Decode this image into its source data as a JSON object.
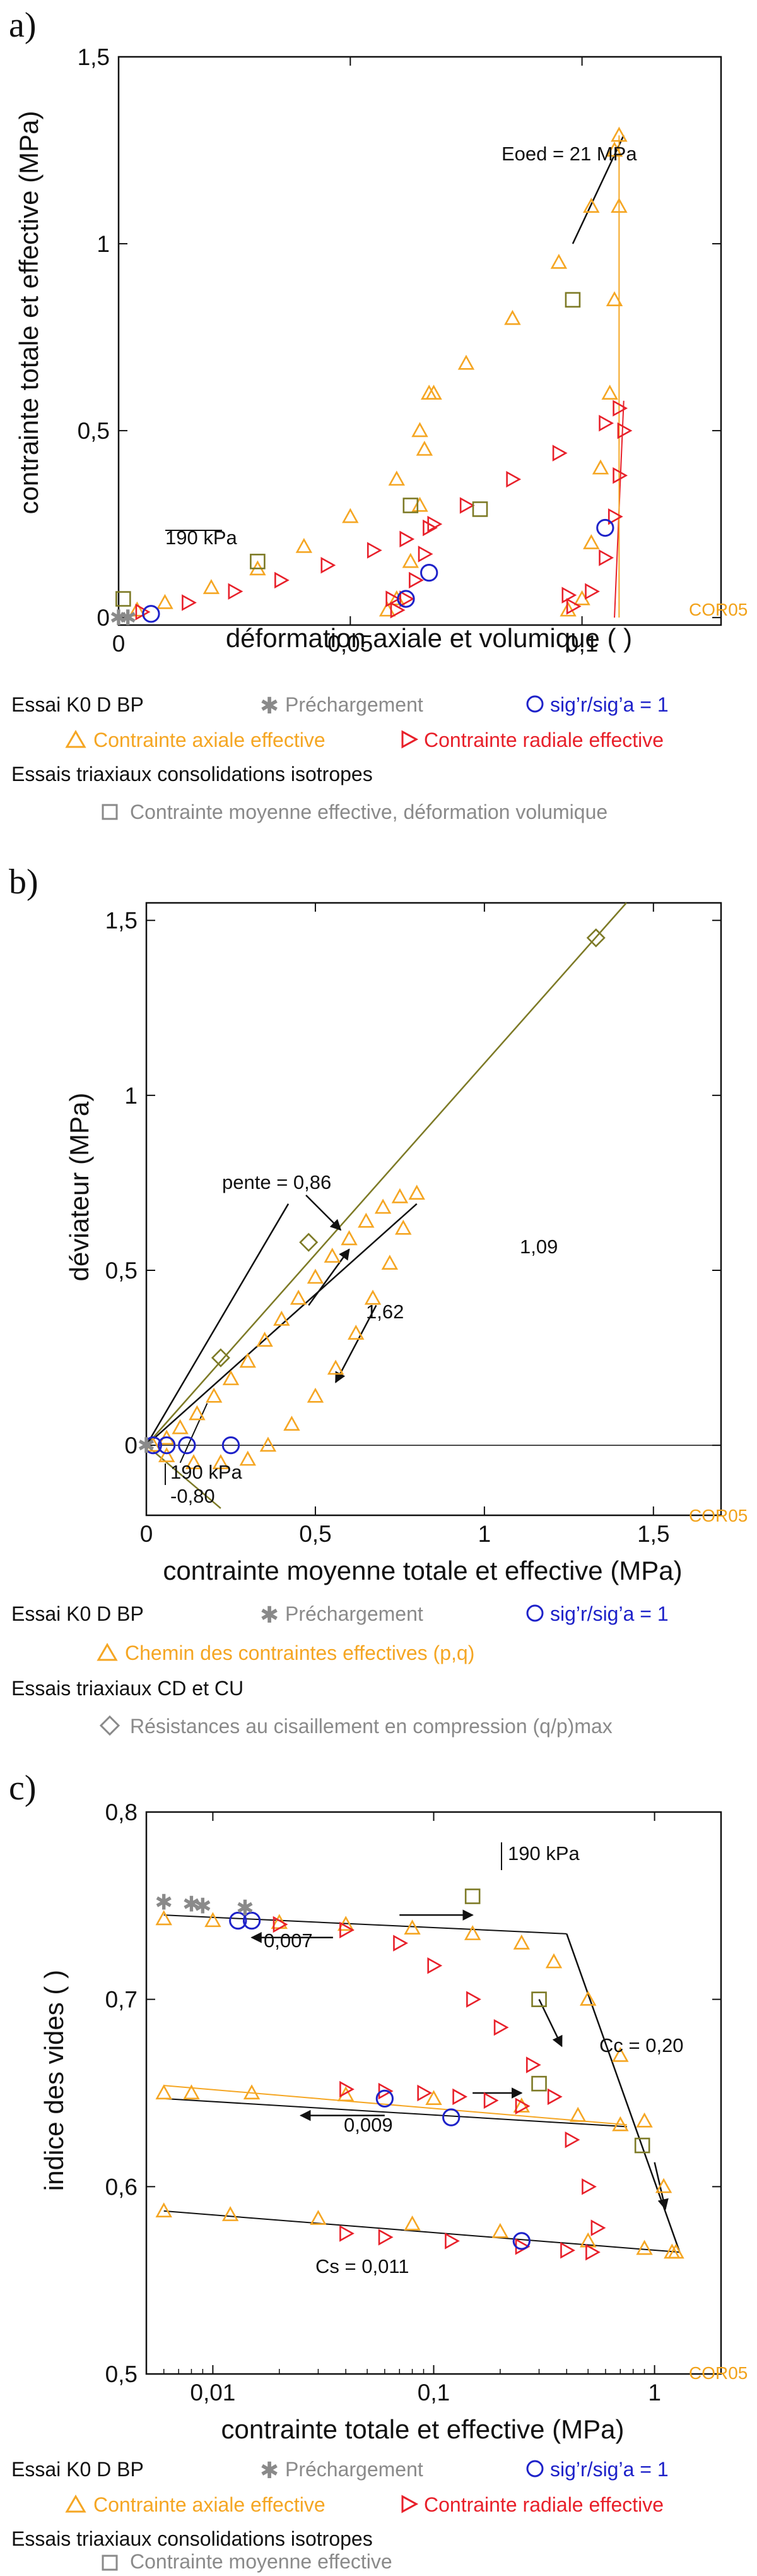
{
  "colors": {
    "orange": "#f5a623",
    "red": "#e8202a",
    "blue": "#1e22c9",
    "gray": "#8a8a8a",
    "olive": "#7d7a26",
    "black": "#111111"
  },
  "chart_data": [
    {
      "type": "scatter",
      "panel": "a)",
      "ylabel": "contrainte totale et effective (MPa)",
      "xlabel": "déformation axiale et volumique ( )",
      "xlim": [
        0,
        0.13
      ],
      "ylim": [
        -0.02,
        1.5
      ],
      "xticks": [
        0,
        0.05,
        0.1
      ],
      "xtick_labels": [
        "0",
        "0,05",
        "0,1"
      ],
      "yticks": [
        0,
        0.5,
        1,
        1.5
      ],
      "ytick_labels": [
        "0",
        "0,5",
        "1",
        "1,5"
      ],
      "sample": "COR05",
      "annotations": [
        "Eoed = 21 MPa",
        "190 kPa"
      ],
      "series": [
        {
          "name": "Contrainte axiale effective",
          "color": "#f5a623",
          "marker": "triangle",
          "points": [
            [
              0.004,
              0.02
            ],
            [
              0.01,
              0.04
            ],
            [
              0.02,
              0.08
            ],
            [
              0.03,
              0.13
            ],
            [
              0.04,
              0.19
            ],
            [
              0.05,
              0.27
            ],
            [
              0.06,
              0.37
            ],
            [
              0.065,
              0.5
            ],
            [
              0.068,
              0.6
            ],
            [
              0.075,
              0.68
            ],
            [
              0.085,
              0.8
            ],
            [
              0.095,
              0.95
            ],
            [
              0.102,
              1.1
            ],
            [
              0.107,
              1.25
            ],
            [
              0.108,
              1.29
            ],
            [
              0.108,
              1.1
            ],
            [
              0.107,
              0.85
            ],
            [
              0.106,
              0.6
            ],
            [
              0.104,
              0.4
            ],
            [
              0.102,
              0.2
            ],
            [
              0.1,
              0.05
            ],
            [
              0.097,
              0.02
            ],
            [
              0.067,
              0.6
            ],
            [
              0.066,
              0.45
            ],
            [
              0.065,
              0.3
            ],
            [
              0.063,
              0.15
            ],
            [
              0.06,
              0.05
            ],
            [
              0.058,
              0.02
            ]
          ]
        },
        {
          "name": "Contrainte radiale effective",
          "color": "#e8202a",
          "marker": "triangle-right",
          "points": [
            [
              0.005,
              0.015
            ],
            [
              0.015,
              0.04
            ],
            [
              0.025,
              0.07
            ],
            [
              0.035,
              0.1
            ],
            [
              0.045,
              0.14
            ],
            [
              0.055,
              0.18
            ],
            [
              0.062,
              0.21
            ],
            [
              0.068,
              0.25
            ],
            [
              0.075,
              0.3
            ],
            [
              0.085,
              0.37
            ],
            [
              0.095,
              0.44
            ],
            [
              0.105,
              0.52
            ],
            [
              0.108,
              0.56
            ],
            [
              0.109,
              0.5
            ],
            [
              0.108,
              0.38
            ],
            [
              0.107,
              0.27
            ],
            [
              0.105,
              0.16
            ],
            [
              0.102,
              0.07
            ],
            [
              0.098,
              0.03
            ],
            [
              0.097,
              0.06
            ],
            [
              0.067,
              0.24
            ],
            [
              0.066,
              0.17
            ],
            [
              0.064,
              0.1
            ],
            [
              0.062,
              0.05
            ],
            [
              0.06,
              0.02
            ],
            [
              0.059,
              0.05
            ]
          ]
        },
        {
          "name": "Contrainte moyenne effective, déformation volumique",
          "color": "#7d7a26",
          "marker": "square",
          "points": [
            [
              0.001,
              0.05
            ],
            [
              0.03,
              0.15
            ],
            [
              0.063,
              0.3
            ],
            [
              0.078,
              0.29
            ],
            [
              0.098,
              0.85
            ]
          ]
        },
        {
          "name": "sig'r/sig'a = 1",
          "color": "#1e22c9",
          "marker": "circle",
          "points": [
            [
              0.007,
              0.01
            ],
            [
              0.062,
              0.05
            ],
            [
              0.067,
              0.12
            ],
            [
              0.105,
              0.24
            ]
          ]
        },
        {
          "name": "Préchargement",
          "color": "#8a8a8a",
          "marker": "star",
          "points": [
            [
              0.0,
              0.0
            ],
            [
              0.002,
              0.0
            ]
          ]
        }
      ]
    },
    {
      "type": "scatter",
      "panel": "b)",
      "ylabel": "déviateur (MPa)",
      "xlabel": "contrainte moyenne totale et effective (MPa)",
      "xlim": [
        0,
        1.7
      ],
      "ylim": [
        -0.2,
        1.55
      ],
      "xticks": [
        0,
        0.5,
        1,
        1.5
      ],
      "xtick_labels": [
        "0",
        "0,5",
        "1",
        "1,5"
      ],
      "yticks": [
        0,
        0.5,
        1,
        1.5
      ],
      "ytick_labels": [
        "0",
        "0,5",
        "1",
        "1,5"
      ],
      "sample": "COR05",
      "annotations": [
        "1,09",
        "pente = 0,86",
        "1,62",
        "190 kPa",
        "-0,80"
      ],
      "series": [
        {
          "name": "Chemin des contraintes effectives (p,q)",
          "color": "#f5a623",
          "marker": "triangle",
          "points": [
            [
              0.02,
              0.0
            ],
            [
              0.06,
              0.02
            ],
            [
              0.1,
              0.05
            ],
            [
              0.15,
              0.09
            ],
            [
              0.2,
              0.14
            ],
            [
              0.25,
              0.19
            ],
            [
              0.3,
              0.24
            ],
            [
              0.35,
              0.3
            ],
            [
              0.4,
              0.36
            ],
            [
              0.45,
              0.42
            ],
            [
              0.5,
              0.48
            ],
            [
              0.55,
              0.54
            ],
            [
              0.6,
              0.59
            ],
            [
              0.65,
              0.64
            ],
            [
              0.7,
              0.68
            ],
            [
              0.75,
              0.71
            ],
            [
              0.8,
              0.72
            ],
            [
              0.76,
              0.62
            ],
            [
              0.72,
              0.52
            ],
            [
              0.67,
              0.42
            ],
            [
              0.62,
              0.32
            ],
            [
              0.56,
              0.22
            ],
            [
              0.5,
              0.14
            ],
            [
              0.43,
              0.06
            ],
            [
              0.36,
              0.0
            ],
            [
              0.3,
              -0.04
            ],
            [
              0.22,
              -0.05
            ],
            [
              0.14,
              -0.05
            ],
            [
              0.06,
              -0.03
            ]
          ]
        },
        {
          "name": "Résistances au cisaillement en compression (q/p)max",
          "color": "#7d7a26",
          "marker": "diamond",
          "points": [
            [
              0.22,
              0.25
            ],
            [
              0.48,
              0.58
            ],
            [
              1.33,
              1.45
            ]
          ]
        },
        {
          "name": "sig'r/sig'a = 1",
          "color": "#1e22c9",
          "marker": "circle",
          "points": [
            [
              0.02,
              0.0
            ],
            [
              0.06,
              0.0
            ],
            [
              0.12,
              0.0
            ],
            [
              0.25,
              0.0
            ]
          ]
        },
        {
          "name": "Préchargement",
          "color": "#8a8a8a",
          "marker": "star",
          "points": [
            [
              0.0,
              0.0
            ]
          ]
        }
      ]
    },
    {
      "type": "scatter",
      "panel": "c)",
      "ylabel": "indice des vides ( )",
      "xlabel": "contrainte totale et effective (MPa)",
      "xscale": "log",
      "xlim": [
        0.005,
        2
      ],
      "ylim": [
        0.5,
        0.8
      ],
      "xticks": [
        0.01,
        0.1,
        1
      ],
      "xtick_labels": [
        "0,01",
        "0,1",
        "1"
      ],
      "yticks": [
        0.5,
        0.6,
        0.7,
        0.8
      ],
      "ytick_labels": [
        "0,5",
        "0,6",
        "0,7",
        "0,8"
      ],
      "sample": "COR05",
      "annotations": [
        "190 kPa",
        "0,007",
        "Cc = 0,20",
        "0,009",
        "Cs = 0,011"
      ],
      "series": [
        {
          "name": "Contrainte axiale effective",
          "color": "#f5a623",
          "marker": "triangle",
          "points": [
            [
              0.006,
              0.743
            ],
            [
              0.01,
              0.742
            ],
            [
              0.02,
              0.741
            ],
            [
              0.04,
              0.74
            ],
            [
              0.08,
              0.738
            ],
            [
              0.15,
              0.735
            ],
            [
              0.25,
              0.73
            ],
            [
              0.35,
              0.72
            ],
            [
              0.5,
              0.7
            ],
            [
              0.7,
              0.67
            ],
            [
              0.9,
              0.635
            ],
            [
              1.1,
              0.6
            ],
            [
              1.25,
              0.565
            ],
            [
              1.2,
              0.565
            ],
            [
              0.9,
              0.567
            ],
            [
              0.5,
              0.571
            ],
            [
              0.2,
              0.576
            ],
            [
              0.08,
              0.58
            ],
            [
              0.03,
              0.583
            ],
            [
              0.012,
              0.585
            ],
            [
              0.006,
              0.587
            ],
            [
              0.006,
              0.65
            ],
            [
              0.008,
              0.65
            ],
            [
              0.015,
              0.65
            ],
            [
              0.04,
              0.649
            ],
            [
              0.1,
              0.647
            ],
            [
              0.25,
              0.643
            ],
            [
              0.45,
              0.638
            ],
            [
              0.7,
              0.633
            ]
          ]
        },
        {
          "name": "Contrainte radiale effective",
          "color": "#e8202a",
          "marker": "triangle-right",
          "points": [
            [
              0.02,
              0.74
            ],
            [
              0.04,
              0.737
            ],
            [
              0.07,
              0.73
            ],
            [
              0.1,
              0.718
            ],
            [
              0.15,
              0.7
            ],
            [
              0.2,
              0.685
            ],
            [
              0.28,
              0.665
            ],
            [
              0.35,
              0.648
            ],
            [
              0.42,
              0.625
            ],
            [
              0.5,
              0.6
            ],
            [
              0.55,
              0.578
            ],
            [
              0.52,
              0.565
            ],
            [
              0.4,
              0.566
            ],
            [
              0.25,
              0.568
            ],
            [
              0.12,
              0.571
            ],
            [
              0.06,
              0.573
            ],
            [
              0.04,
              0.575
            ],
            [
              0.04,
              0.652
            ],
            [
              0.06,
              0.651
            ],
            [
              0.09,
              0.65
            ],
            [
              0.13,
              0.648
            ],
            [
              0.18,
              0.646
            ],
            [
              0.25,
              0.643
            ]
          ]
        },
        {
          "name": "Contrainte moyenne effective",
          "color": "#7d7a26",
          "marker": "square",
          "points": [
            [
              0.15,
              0.755
            ],
            [
              0.3,
              0.7
            ],
            [
              0.3,
              0.655
            ],
            [
              0.88,
              0.622
            ]
          ]
        },
        {
          "name": "sig'r/sig'a = 1",
          "color": "#1e22c9",
          "marker": "circle",
          "points": [
            [
              0.013,
              0.742
            ],
            [
              0.015,
              0.742
            ],
            [
              0.06,
              0.647
            ],
            [
              0.12,
              0.637
            ],
            [
              0.25,
              0.571
            ]
          ]
        },
        {
          "name": "Préchargement",
          "color": "#8a8a8a",
          "marker": "star",
          "points": [
            [
              0.006,
              0.752
            ],
            [
              0.008,
              0.751
            ],
            [
              0.009,
              0.75
            ],
            [
              0.014,
              0.749
            ]
          ]
        }
      ]
    }
  ],
  "legend_a": {
    "line1_prefix": "Essai K0 D BP",
    "precharge": "Préchargement",
    "ratio": "sig’r/sig’a = 1",
    "axial": "Contrainte axiale effective",
    "radial": "Contrainte radiale effective",
    "line3": "Essais triaxiaux consolidations isotropes",
    "mean": "Contrainte moyenne effective, déformation volumique"
  },
  "legend_b": {
    "line1_prefix": "Essai K0 D BP",
    "precharge": "Préchargement",
    "ratio": "sig’r/sig’a = 1",
    "path": "Chemin des contraintes effectives (p,q)",
    "line3": "Essais triaxiaux CD et CU",
    "strength": "Résistances au cisaillement en compression (q/p)max"
  },
  "legend_c": {
    "line1_prefix": "Essai K0 D BP",
    "precharge": "Préchargement",
    "ratio": "sig’r/sig’a = 1",
    "axial": "Contrainte axiale effective",
    "radial": "Contrainte radiale effective",
    "line3": "Essais triaxiaux consolidations isotropes",
    "mean": "Contrainte moyenne effective"
  }
}
